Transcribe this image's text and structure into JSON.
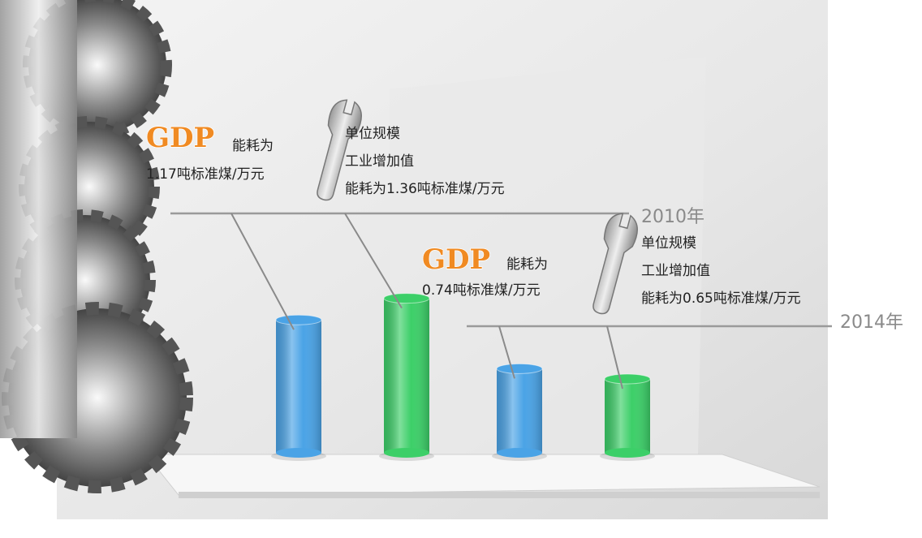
{
  "chart_data": {
    "type": "bar",
    "categories": [
      "2010年",
      "2014年"
    ],
    "series": [
      {
        "name": "GDP",
        "note": "能耗为",
        "color": "#4aa3e6",
        "values": [
          1.17,
          0.74
        ],
        "value_labels": [
          "1.17吨标准煤/万元",
          "0.74吨标准煤/万元"
        ]
      },
      {
        "name_lines": [
          "单位规模",
          "工业增加值"
        ],
        "color": "#3ccf68",
        "values": [
          1.36,
          0.65
        ],
        "value_labels": [
          "能耗为1.36吨标准煤/万元",
          "能耗为0.65吨标准煤/万元"
        ]
      }
    ]
  }
}
